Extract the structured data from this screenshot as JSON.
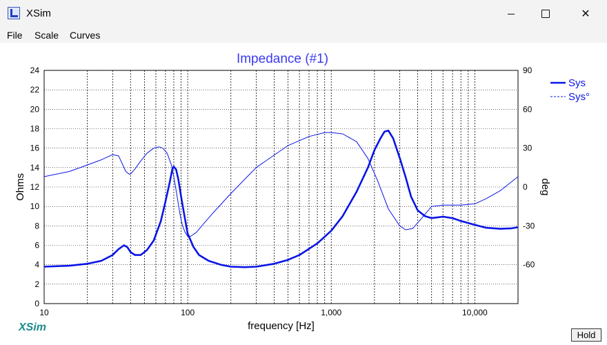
{
  "window": {
    "title": "XSim",
    "minimize_glyph": "",
    "close_glyph": "✕"
  },
  "menu": [
    "File",
    "Scale",
    "Curves"
  ],
  "brand": "XSim",
  "hold_label": "Hold",
  "colors": {
    "curve": "#0a14e6",
    "title": "#3a3af0",
    "brand": "#1a8a8a",
    "grid": "#000000"
  },
  "chart_data": {
    "type": "line",
    "title": "Impedance (#1)",
    "xlabel": "frequency [Hz]",
    "ylabel": "Ohms",
    "y2label": "deg",
    "xscale": "log",
    "xlim": [
      10,
      20000
    ],
    "ylim": [
      0,
      24
    ],
    "y2lim": [
      -90,
      90
    ],
    "grid": true,
    "legend_position": "top-right",
    "x_ticks": [
      {
        "value": 10,
        "label": "10"
      },
      {
        "value": 100,
        "label": "100"
      },
      {
        "value": 1000,
        "label": "1,000"
      },
      {
        "value": 10000,
        "label": "10,000"
      }
    ],
    "y_ticks": [
      0,
      2,
      4,
      6,
      8,
      10,
      12,
      14,
      16,
      18,
      20,
      22,
      24
    ],
    "y2_ticks": [
      -60,
      -30,
      0,
      30,
      60,
      90
    ],
    "series": [
      {
        "name": "Sys",
        "axis": "left",
        "style": "solid",
        "x": [
          10,
          15,
          20,
          25,
          30,
          33,
          36,
          38,
          40,
          43,
          47,
          52,
          58,
          65,
          70,
          75,
          78,
          80,
          83,
          86,
          90,
          95,
          100,
          110,
          120,
          140,
          170,
          200,
          250,
          300,
          400,
          500,
          600,
          800,
          1000,
          1200,
          1500,
          1800,
          2000,
          2200,
          2350,
          2500,
          2700,
          3000,
          3300,
          3600,
          4000,
          4500,
          5000,
          6000,
          7000,
          8000,
          10000,
          12000,
          15000,
          18000,
          20000
        ],
        "y": [
          3.8,
          3.9,
          4.1,
          4.4,
          5.0,
          5.6,
          6.0,
          5.8,
          5.3,
          5.0,
          5.0,
          5.5,
          6.5,
          8.5,
          10.5,
          12.5,
          13.8,
          14.1,
          13.8,
          12.8,
          11.0,
          9.0,
          7.2,
          5.8,
          5.0,
          4.4,
          4.0,
          3.8,
          3.75,
          3.8,
          4.1,
          4.5,
          5.0,
          6.2,
          7.5,
          9.0,
          11.5,
          14.0,
          15.8,
          17.0,
          17.7,
          17.8,
          17.0,
          15.0,
          13.0,
          11.0,
          9.6,
          9.0,
          8.8,
          8.95,
          8.8,
          8.5,
          8.1,
          7.8,
          7.7,
          7.75,
          7.85
        ]
      },
      {
        "name": "Sys°",
        "axis": "right",
        "style": "dashed",
        "x": [
          10,
          15,
          20,
          25,
          30,
          33,
          35,
          37,
          39,
          40,
          43,
          47,
          52,
          58,
          63,
          67,
          72,
          77,
          80,
          84,
          88,
          92,
          96,
          100,
          105,
          115,
          130,
          150,
          200,
          300,
          500,
          700,
          900,
          1000,
          1200,
          1500,
          1800,
          2100,
          2500,
          3000,
          3300,
          3700,
          4200,
          5000,
          6000,
          8000,
          10000,
          12000,
          15000,
          20000
        ],
        "y": [
          8,
          12,
          17,
          21,
          25,
          24,
          18,
          12,
          10,
          10,
          14,
          20,
          26,
          30,
          31,
          30,
          26,
          17,
          8,
          -6,
          -20,
          -30,
          -35,
          -38,
          -38,
          -35,
          -28,
          -20,
          -5,
          15,
          32,
          39,
          42,
          42,
          41,
          35,
          22,
          5,
          -17,
          -30,
          -33,
          -32,
          -25,
          -15,
          -14,
          -14,
          -13,
          -9,
          -3,
          8
        ]
      }
    ]
  }
}
